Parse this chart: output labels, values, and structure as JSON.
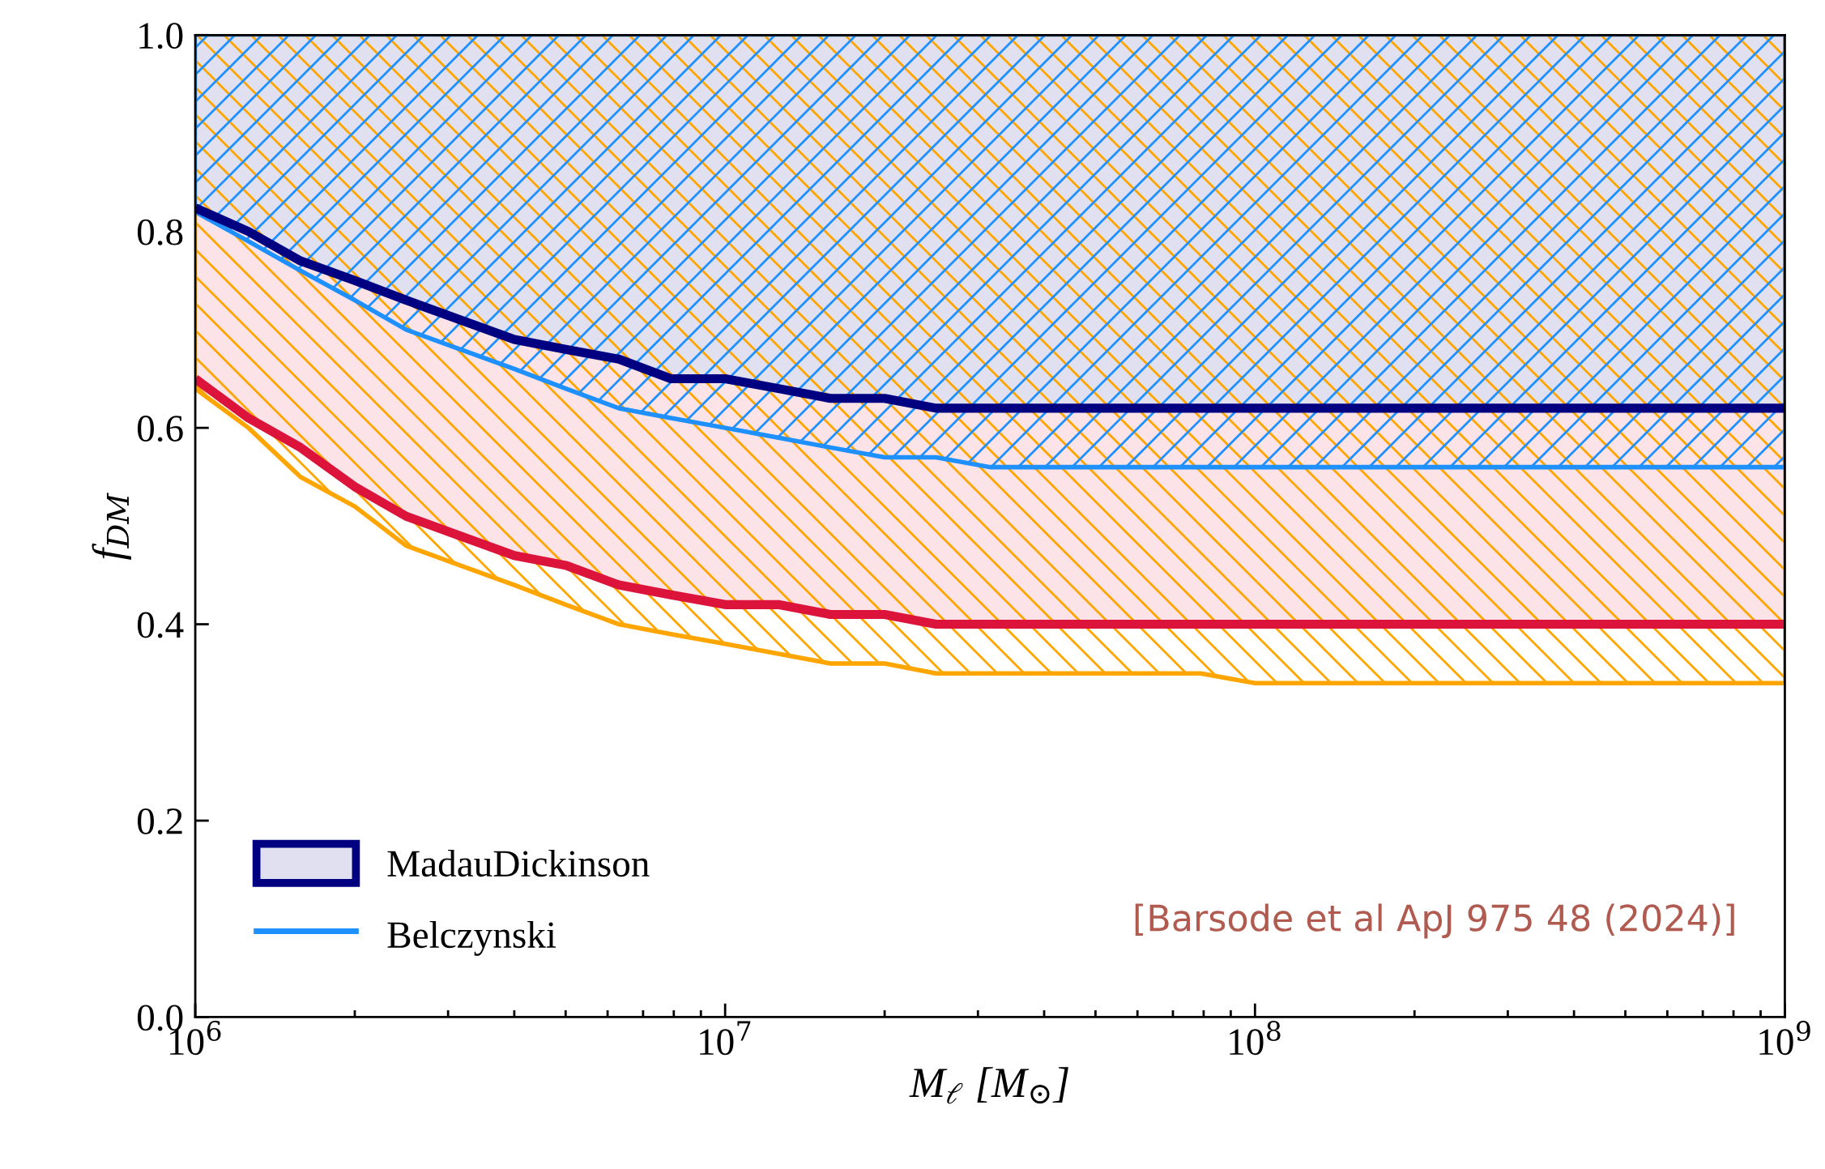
{
  "chart_data": {
    "type": "line",
    "xlabel": "M$_{ℓ}$ [M$_{⊙}$]",
    "ylabel": "f$_{DM}$",
    "log": "x",
    "xlim": [
      1000000,
      1000000000
    ],
    "xticks": [
      {
        "value": 1000000,
        "label": "10$^{6}$"
      },
      {
        "value": 10000000,
        "label": "10$^{7}$"
      },
      {
        "value": 100000000,
        "label": "10$^{8}$"
      },
      {
        "value": 1000000000,
        "label": "10$^{9}$"
      }
    ],
    "ylim": [
      0,
      1
    ],
    "yticks": [
      {
        "value": 0,
        "label": "0.0"
      },
      0.2,
      0.4,
      0.6,
      0.8,
      {
        "value": 1,
        "label": "1.0"
      }
    ],
    "grid": false,
    "legend": "bottom left",
    "annotations": [
      "[Barsode et al ApJ 975 48 (2024)]"
    ],
    "series": [
      {
        "color": "#dc143c",
        "x": [
          1000000,
          1260000,
          1580000,
          2000000,
          2500000,
          3160000,
          4000000,
          5000000,
          6300000,
          7900000,
          10000000,
          12600000,
          15800000,
          20000000,
          25000000,
          1000000000
        ],
        "values": [
          0.65,
          0.61,
          0.58,
          0.54,
          0.51,
          0.49,
          0.47,
          0.46,
          0.44,
          0.43,
          0.42,
          0.42,
          0.41,
          0.41,
          0.4,
          0.4
        ],
        "lower": [
          0.65,
          0.61,
          0.58,
          0.54,
          0.51,
          0.49,
          0.47,
          0.46,
          0.44,
          0.43,
          0.42,
          0.42,
          0.41,
          0.41,
          0.4,
          0.4
        ],
        "upper": [
          1,
          1,
          1,
          1,
          1,
          1,
          1,
          1,
          1,
          1,
          1,
          1,
          1,
          1,
          1,
          1
        ]
      },
      {
        "color": "#ffa500",
        "x": [
          1000000,
          1260000,
          1580000,
          2000000,
          2500000,
          3160000,
          4000000,
          5000000,
          6300000,
          7900000,
          10000000,
          12600000,
          15800000,
          20000000,
          25000000,
          50000000,
          79000000,
          100000000,
          1000000000
        ],
        "values": [
          0.64,
          0.6,
          0.55,
          0.52,
          0.48,
          0.46,
          0.44,
          0.42,
          0.4,
          0.39,
          0.38,
          0.37,
          0.36,
          0.36,
          0.35,
          0.35,
          0.35,
          0.34,
          0.34
        ],
        "lower": [
          0.64,
          0.6,
          0.55,
          0.52,
          0.48,
          0.46,
          0.44,
          0.42,
          0.4,
          0.39,
          0.38,
          0.37,
          0.36,
          0.36,
          0.35,
          0.35,
          0.35,
          0.34,
          0.34
        ],
        "upper": [
          1,
          1,
          1,
          1,
          1,
          1,
          1,
          1,
          1,
          1,
          1,
          1,
          1,
          1,
          1,
          1,
          1,
          1,
          1
        ]
      },
      {
        "name": "MadauDickinson",
        "color": "#000080",
        "x": [
          1000000,
          1260000,
          1580000,
          2000000,
          2500000,
          3160000,
          4000000,
          5000000,
          6300000,
          7900000,
          10000000,
          12600000,
          15800000,
          20000000,
          25000000,
          1000000000
        ],
        "values": [
          0.824,
          0.8,
          0.77,
          0.75,
          0.73,
          0.71,
          0.69,
          0.68,
          0.67,
          0.65,
          0.65,
          0.64,
          0.63,
          0.63,
          0.62,
          0.62
        ],
        "lower": [
          0.824,
          0.8,
          0.77,
          0.75,
          0.73,
          0.71,
          0.69,
          0.68,
          0.67,
          0.65,
          0.65,
          0.64,
          0.63,
          0.63,
          0.62,
          0.62
        ],
        "upper": [
          1,
          1,
          1,
          1,
          1,
          1,
          1,
          1,
          1,
          1,
          1,
          1,
          1,
          1,
          1,
          1
        ]
      },
      {
        "name": "Belczynski",
        "color": "#1e90ff",
        "x": [
          1000000,
          1260000,
          1580000,
          2000000,
          2500000,
          3160000,
          4000000,
          5000000,
          6300000,
          7900000,
          10000000,
          12600000,
          15800000,
          20000000,
          25000000,
          31600000,
          1000000000
        ],
        "values": [
          0.82,
          0.79,
          0.76,
          0.73,
          0.7,
          0.68,
          0.66,
          0.64,
          0.62,
          0.61,
          0.6,
          0.59,
          0.58,
          0.57,
          0.57,
          0.56,
          0.56
        ],
        "lower": [
          0.82,
          0.79,
          0.76,
          0.73,
          0.7,
          0.68,
          0.66,
          0.64,
          0.62,
          0.61,
          0.6,
          0.59,
          0.58,
          0.57,
          0.57,
          0.56,
          0.56
        ],
        "upper": [
          1,
          1,
          1,
          1,
          1,
          1,
          1,
          1,
          1,
          1,
          1,
          1,
          1,
          1,
          1,
          1,
          1
        ]
      }
    ]
  }
}
